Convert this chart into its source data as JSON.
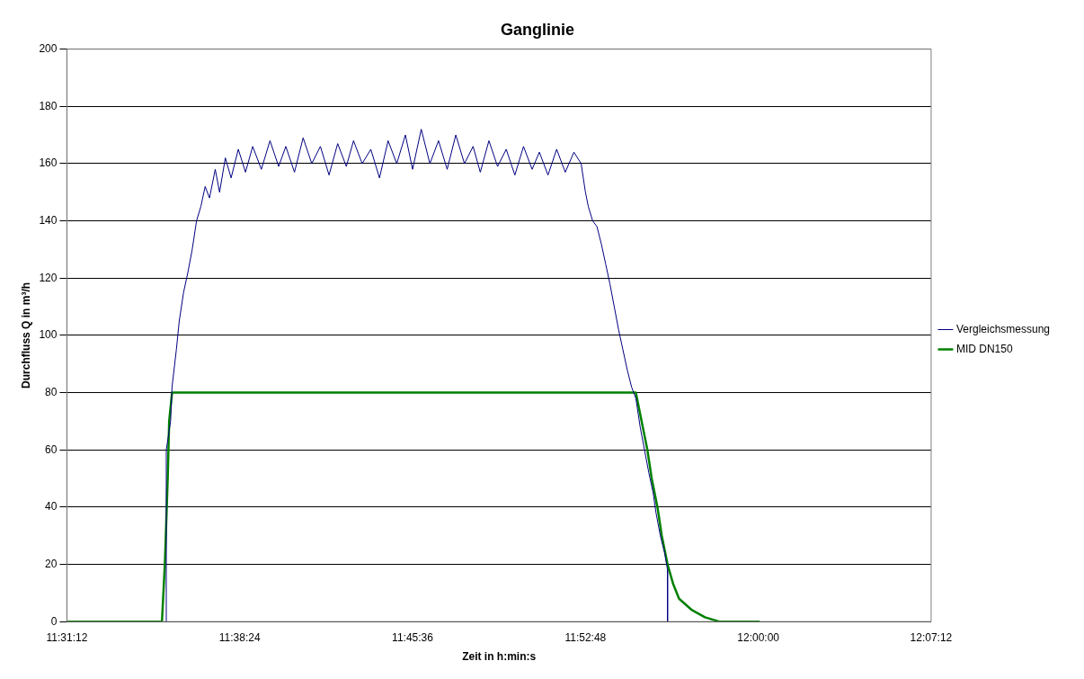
{
  "chart_data": {
    "type": "line",
    "title": "Ganglinie",
    "xlabel": "Zeit in h:min:s",
    "ylabel": "Durchfluss Q in m³/h",
    "xlim": [
      11.52,
      12.12
    ],
    "xticks": [
      {
        "value": 11.52,
        "label": "11:31:12"
      },
      {
        "value": 11.64,
        "label": "11:38:24"
      },
      {
        "value": 11.76,
        "label": "11:45:36"
      },
      {
        "value": 11.88,
        "label": "11:52:48"
      },
      {
        "value": 12.0,
        "label": "12:00:00"
      },
      {
        "value": 12.12,
        "label": "12:07:12"
      }
    ],
    "ylim": [
      0,
      200
    ],
    "yticks": [
      0,
      20,
      40,
      60,
      80,
      100,
      120,
      140,
      160,
      180,
      200
    ],
    "grid": "y",
    "legend": "right",
    "marker": "none",
    "line_style": "solid",
    "series": [
      {
        "name": "Vergleichsmessung",
        "color": "#000080",
        "x": [
          11.589,
          11.589,
          11.592,
          11.593,
          11.596,
          11.598,
          11.601,
          11.604,
          11.607,
          11.61,
          11.613,
          11.616,
          11.619,
          11.623,
          11.626,
          11.63,
          11.634,
          11.639,
          11.644,
          11.649,
          11.655,
          11.661,
          11.667,
          11.672,
          11.678,
          11.684,
          11.69,
          11.696,
          11.702,
          11.708,
          11.714,
          11.719,
          11.725,
          11.731,
          11.737,
          11.743,
          11.749,
          11.755,
          11.76,
          11.766,
          11.772,
          11.778,
          11.784,
          11.79,
          11.796,
          11.802,
          11.807,
          11.813,
          11.819,
          11.825,
          11.831,
          11.837,
          11.843,
          11.848,
          11.854,
          11.86,
          11.866,
          11.872,
          11.877,
          11.88,
          11.882,
          11.885,
          11.888,
          11.891,
          11.894,
          11.897,
          11.9,
          11.903,
          11.906,
          11.909,
          11.912,
          11.915,
          11.918,
          11.921,
          11.924,
          11.927,
          11.929,
          11.932,
          11.935,
          11.937,
          11.937
        ],
        "values": [
          0,
          60,
          70,
          82,
          95,
          105,
          115,
          122,
          130,
          140,
          145,
          152,
          148,
          158,
          150,
          162,
          155,
          165,
          157,
          166,
          158,
          168,
          159,
          166,
          157,
          169,
          160,
          166,
          156,
          167,
          159,
          168,
          160,
          165,
          155,
          168,
          160,
          170,
          158,
          172,
          160,
          168,
          158,
          170,
          160,
          166,
          157,
          168,
          159,
          165,
          156,
          166,
          158,
          164,
          156,
          165,
          157,
          164,
          160,
          150,
          145,
          140,
          138,
          132,
          125,
          118,
          110,
          102,
          95,
          88,
          82,
          78,
          68,
          60,
          52,
          45,
          38,
          30,
          24,
          18,
          0
        ]
      },
      {
        "name": "MID DN150",
        "color": "#008000",
        "x": [
          11.52,
          11.586,
          11.588,
          11.59,
          11.591,
          11.593,
          11.915,
          11.919,
          11.923,
          11.926,
          11.93,
          11.933,
          11.937,
          11.941,
          11.945,
          11.954,
          11.963,
          11.973,
          12.001
        ],
        "values": [
          0,
          0,
          20,
          50,
          70,
          80,
          80,
          70,
          60,
          50,
          40,
          30,
          20,
          13,
          8,
          4,
          1.5,
          0,
          0
        ]
      }
    ]
  }
}
